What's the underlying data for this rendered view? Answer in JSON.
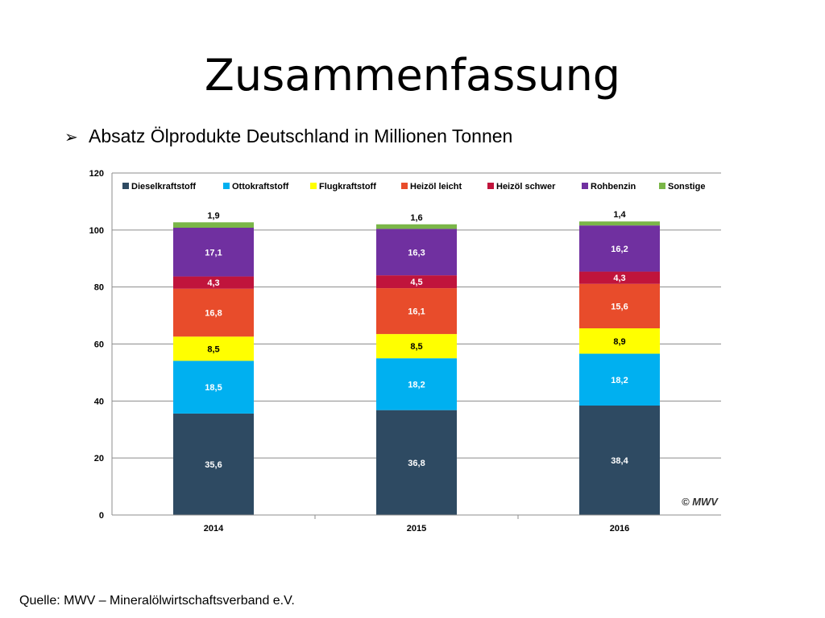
{
  "slide": {
    "title": "Zusammenfassung",
    "bullet": "Absatz Ölprodukte Deutschland in Millionen Tonnen",
    "source": "Quelle: MWV – Mineralölwirtschaftsverband e.V.",
    "copyright": "© MWV"
  },
  "chart_data": {
    "type": "bar",
    "stacked": true,
    "categories": [
      "2014",
      "2015",
      "2016"
    ],
    "ylim": [
      0,
      120
    ],
    "yticks": [
      0,
      20,
      40,
      60,
      80,
      100,
      120
    ],
    "grid": true,
    "legend": "top",
    "series": [
      {
        "name": "Dieselkraftstoff",
        "color": "#2e4a62",
        "values": [
          35.6,
          36.8,
          38.4
        ],
        "labels": [
          "35,6",
          "36,8",
          "38,4"
        ],
        "label_color": "#ffffff"
      },
      {
        "name": "Ottokraftstoff",
        "color": "#00b0f0",
        "values": [
          18.5,
          18.2,
          18.2
        ],
        "labels": [
          "18,5",
          "18,2",
          "18,2"
        ],
        "label_color": "#ffffff"
      },
      {
        "name": "Flugkraftstoff",
        "color": "#ffff00",
        "values": [
          8.5,
          8.5,
          8.9
        ],
        "labels": [
          "8,5",
          "8,5",
          "8,9"
        ],
        "label_color": "#000000"
      },
      {
        "name": "Heizöl leicht",
        "color": "#e84c2b",
        "values": [
          16.8,
          16.1,
          15.6
        ],
        "labels": [
          "16,8",
          "16,1",
          "15,6"
        ],
        "label_color": "#ffffff"
      },
      {
        "name": "Heizöl schwer",
        "color": "#c0143c",
        "values": [
          4.3,
          4.5,
          4.3
        ],
        "labels": [
          "4,3",
          "4,5",
          "4,3"
        ],
        "label_color": "#ffffff"
      },
      {
        "name": "Rohbenzin",
        "color": "#7030a0",
        "values": [
          17.1,
          16.3,
          16.2
        ],
        "labels": [
          "17,1",
          "16,3",
          "16,2"
        ],
        "label_color": "#ffffff"
      },
      {
        "name": "Sonstige",
        "color": "#7ab648",
        "values": [
          1.9,
          1.6,
          1.4
        ],
        "labels": [
          "1,9",
          "1,6",
          "1,4"
        ],
        "label_color": "#000000"
      }
    ]
  }
}
